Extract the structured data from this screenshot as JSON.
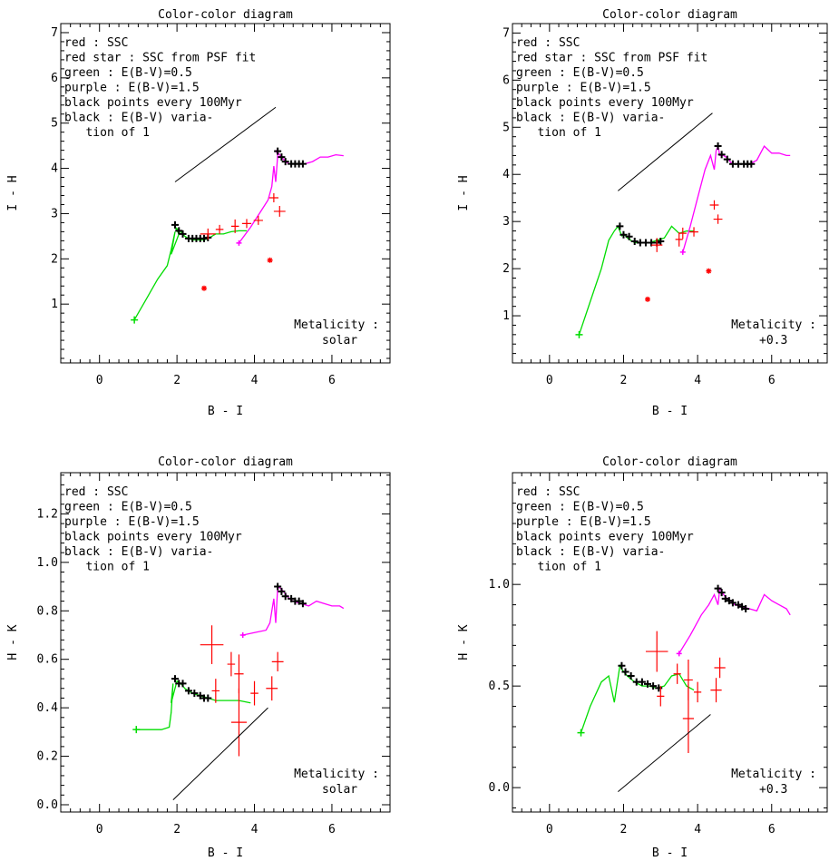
{
  "chart_data": [
    {
      "type": "scatter",
      "title": "Color-color diagram",
      "xlabel": "B - I",
      "ylabel": "I - H",
      "xlim": [
        -1.0,
        7.5
      ],
      "ylim": [
        -0.3,
        7.2
      ],
      "xticks": [
        0,
        2,
        4,
        6
      ],
      "yticks": [
        1,
        2,
        3,
        4,
        5,
        6,
        7
      ],
      "legend": [
        "red : SSC",
        "red star : SSC from PSF fit",
        "green : E(B-V)=0.5",
        "purple : E(B-V)=1.5",
        "black points every 100Myr",
        "black : E(B-V) varia-",
        "   tion of 1"
      ],
      "annotation": [
        "Metalicity :",
        "solar"
      ],
      "colors": {
        "ssc": "#ff0000",
        "green": "#00dd00",
        "purple": "#ff00ff",
        "black": "#000000"
      },
      "series": [
        {
          "name": "green",
          "color": "#00dd00",
          "x": [
            0.9,
            1.2,
            1.5,
            1.75,
            1.85,
            1.95,
            1.85,
            2.05,
            1.95,
            2.1,
            2.2,
            2.3,
            2.4,
            2.5,
            2.6,
            2.7,
            2.8,
            2.9,
            3.0,
            3.2,
            3.4,
            3.6,
            3.8
          ],
          "y": [
            0.65,
            1.1,
            1.55,
            1.85,
            2.2,
            2.6,
            2.1,
            2.55,
            2.7,
            2.6,
            2.5,
            2.45,
            2.42,
            2.42,
            2.42,
            2.42,
            2.45,
            2.5,
            2.55,
            2.55,
            2.6,
            2.62,
            2.62
          ]
        },
        {
          "name": "purple",
          "color": "#ff00ff",
          "x": [
            3.6,
            3.9,
            4.2,
            4.35,
            4.45,
            4.5,
            4.55,
            4.6,
            4.55,
            4.7,
            4.8,
            4.9,
            5.0,
            5.1,
            5.2,
            5.3,
            5.5,
            5.7,
            5.9,
            6.1,
            6.3
          ],
          "y": [
            2.35,
            2.7,
            3.1,
            3.3,
            3.6,
            4.05,
            3.7,
            4.3,
            4.4,
            4.25,
            4.15,
            4.1,
            4.1,
            4.1,
            4.1,
            4.1,
            4.15,
            4.25,
            4.25,
            4.3,
            4.28
          ]
        },
        {
          "name": "black points every 100Myr",
          "color": "#000000",
          "marker": "plus",
          "x": [
            1.95,
            2.05,
            2.15,
            2.3,
            2.4,
            2.5,
            2.6,
            2.7,
            2.8,
            4.6,
            4.7,
            4.8,
            4.95,
            5.05,
            5.15,
            5.25
          ],
          "y": [
            2.75,
            2.62,
            2.55,
            2.45,
            2.45,
            2.45,
            2.45,
            2.45,
            2.47,
            4.38,
            4.25,
            4.15,
            4.1,
            4.1,
            4.1,
            4.1
          ]
        },
        {
          "name": "red : SSC",
          "color": "#ff0000",
          "marker": "cross",
          "x": [
            2.8,
            3.1,
            3.5,
            3.8,
            4.1,
            4.5,
            4.65
          ],
          "y": [
            2.55,
            2.65,
            2.72,
            2.78,
            2.85,
            3.35,
            3.05
          ],
          "xerr": [
            0.2,
            0.1,
            0.1,
            0.12,
            0.12,
            0.12,
            0.15
          ],
          "yerr": [
            0.12,
            0.1,
            0.15,
            0.1,
            0.1,
            0.1,
            0.12
          ]
        },
        {
          "name": "red star : SSC from PSF fit",
          "color": "#ff0000",
          "marker": "star",
          "x": [
            2.7,
            4.4
          ],
          "y": [
            1.35,
            1.97
          ]
        },
        {
          "name": "black : E(B-V) variation of 1",
          "color": "#000000",
          "line": true,
          "x": [
            1.95,
            4.55
          ],
          "y": [
            3.7,
            5.35
          ]
        }
      ]
    },
    {
      "type": "scatter",
      "title": "Color-color diagram",
      "xlabel": "B - I",
      "ylabel": "I - H",
      "xlim": [
        -1.0,
        7.5
      ],
      "ylim": [
        0.0,
        7.2
      ],
      "xticks": [
        0,
        2,
        4,
        6
      ],
      "yticks": [
        1,
        2,
        3,
        4,
        5,
        6,
        7
      ],
      "legend": [
        "red : SSC",
        "red star : SSC from PSF fit",
        "green : E(B-V)=0.5",
        "purple : E(B-V)=1.5",
        "black points every 100Myr",
        "black : E(B-V) varia-",
        "   tion of 1"
      ],
      "annotation": [
        "Metalicity :",
        "+0.3"
      ],
      "colors": {
        "ssc": "#ff0000",
        "green": "#00dd00",
        "purple": "#ff00ff",
        "black": "#000000"
      },
      "series": [
        {
          "name": "green",
          "color": "#00dd00",
          "x": [
            0.8,
            1.1,
            1.4,
            1.6,
            1.75,
            1.85,
            1.95,
            2.0,
            2.1,
            2.2,
            2.3,
            2.5,
            2.7,
            2.9,
            3.1,
            3.3,
            3.5,
            3.7,
            3.9
          ],
          "y": [
            0.6,
            1.3,
            2.0,
            2.6,
            2.8,
            2.9,
            2.7,
            2.75,
            2.65,
            2.6,
            2.55,
            2.55,
            2.55,
            2.6,
            2.65,
            2.9,
            2.75,
            2.8,
            2.8
          ]
        },
        {
          "name": "purple",
          "color": "#ff00ff",
          "x": [
            3.6,
            3.8,
            4.0,
            4.2,
            4.35,
            4.45,
            4.5,
            4.55,
            4.6,
            4.7,
            4.8,
            4.9,
            5.0,
            5.2,
            5.4,
            5.6,
            5.8,
            6.0,
            6.2,
            6.4,
            6.5
          ],
          "y": [
            2.35,
            2.9,
            3.5,
            4.1,
            4.4,
            4.1,
            4.5,
            4.6,
            4.4,
            4.4,
            4.35,
            4.25,
            4.22,
            4.22,
            4.22,
            4.3,
            4.6,
            4.45,
            4.45,
            4.4,
            4.4
          ]
        },
        {
          "name": "black points every 100Myr",
          "color": "#000000",
          "marker": "plus",
          "x": [
            1.9,
            2.0,
            2.15,
            2.3,
            2.45,
            2.6,
            2.75,
            2.9,
            3.0,
            4.55,
            4.65,
            4.8,
            4.95,
            5.1,
            5.25,
            5.35,
            5.45
          ],
          "y": [
            2.9,
            2.72,
            2.68,
            2.58,
            2.55,
            2.55,
            2.55,
            2.55,
            2.58,
            4.6,
            4.42,
            4.32,
            4.22,
            4.22,
            4.22,
            4.22,
            4.22
          ]
        },
        {
          "name": "red : SSC",
          "color": "#ff0000",
          "marker": "cross",
          "x": [
            2.9,
            3.5,
            3.6,
            3.9,
            4.45,
            4.55
          ],
          "y": [
            2.5,
            2.62,
            2.75,
            2.78,
            3.35,
            3.05
          ],
          "xerr": [
            0.15,
            0.1,
            0.1,
            0.12,
            0.12,
            0.12
          ],
          "yerr": [
            0.15,
            0.15,
            0.12,
            0.1,
            0.1,
            0.1
          ]
        },
        {
          "name": "red star : SSC from PSF fit",
          "color": "#ff0000",
          "marker": "star",
          "x": [
            2.65,
            4.3
          ],
          "y": [
            1.35,
            1.95
          ]
        },
        {
          "name": "black : E(B-V) variation of 1",
          "color": "#000000",
          "line": true,
          "x": [
            1.85,
            4.4
          ],
          "y": [
            3.65,
            5.3
          ]
        }
      ]
    },
    {
      "type": "scatter",
      "title": "Color-color diagram",
      "xlabel": "B - I",
      "ylabel": "H - K",
      "xlim": [
        -1.0,
        7.5
      ],
      "ylim": [
        -0.03,
        1.37
      ],
      "xticks": [
        0,
        2,
        4,
        6
      ],
      "yticks": [
        0.0,
        0.2,
        0.4,
        0.6,
        0.8,
        1.0,
        1.2
      ],
      "legend": [
        "red : SSC",
        "green : E(B-V)=0.5",
        "purple : E(B-V)=1.5",
        "black points every 100Myr",
        "black : E(B-V) varia-",
        "   tion of 1"
      ],
      "annotation": [
        "Metalicity :",
        "solar"
      ],
      "colors": {
        "ssc": "#ff0000",
        "green": "#00dd00",
        "purple": "#ff00ff",
        "black": "#000000"
      },
      "series": [
        {
          "name": "green",
          "color": "#00dd00",
          "x": [
            0.95,
            1.3,
            1.6,
            1.8,
            1.85,
            1.9,
            1.85,
            2.0,
            2.1,
            2.2,
            2.4,
            2.6,
            2.8,
            3.0,
            3.3,
            3.6,
            3.9
          ],
          "y": [
            0.31,
            0.31,
            0.31,
            0.32,
            0.38,
            0.5,
            0.42,
            0.51,
            0.5,
            0.48,
            0.46,
            0.45,
            0.44,
            0.43,
            0.43,
            0.43,
            0.42
          ]
        },
        {
          "name": "purple",
          "color": "#ff00ff",
          "x": [
            3.7,
            4.0,
            4.3,
            4.4,
            4.45,
            4.5,
            4.55,
            4.6,
            4.7,
            4.8,
            4.9,
            5.0,
            5.2,
            5.4,
            5.6,
            5.8,
            6.0,
            6.2,
            6.3
          ],
          "y": [
            0.7,
            0.71,
            0.72,
            0.75,
            0.8,
            0.85,
            0.75,
            0.9,
            0.89,
            0.87,
            0.85,
            0.84,
            0.83,
            0.82,
            0.84,
            0.83,
            0.82,
            0.82,
            0.81
          ]
        },
        {
          "name": "black points every 100Myr",
          "color": "#000000",
          "marker": "plus",
          "x": [
            1.95,
            2.05,
            2.15,
            2.3,
            2.45,
            2.6,
            2.7,
            2.8,
            4.6,
            4.7,
            4.8,
            4.95,
            5.05,
            5.15,
            5.25
          ],
          "y": [
            0.52,
            0.5,
            0.5,
            0.47,
            0.46,
            0.45,
            0.44,
            0.44,
            0.9,
            0.88,
            0.86,
            0.85,
            0.84,
            0.84,
            0.83
          ]
        },
        {
          "name": "red : SSC",
          "color": "#ff0000",
          "marker": "cross",
          "x": [
            2.9,
            3.0,
            3.4,
            3.6,
            3.6,
            4.0,
            4.45,
            4.6
          ],
          "y": [
            0.66,
            0.47,
            0.58,
            0.54,
            0.34,
            0.46,
            0.48,
            0.59
          ],
          "xerr": [
            0.3,
            0.1,
            0.1,
            0.12,
            0.2,
            0.1,
            0.15,
            0.15
          ],
          "yerr": [
            0.08,
            0.05,
            0.05,
            0.08,
            0.14,
            0.05,
            0.05,
            0.04
          ]
        },
        {
          "name": "black : E(B-V) variation of 1",
          "color": "#000000",
          "line": true,
          "x": [
            1.9,
            4.35
          ],
          "y": [
            0.02,
            0.4
          ]
        }
      ]
    },
    {
      "type": "scatter",
      "title": "Color-color diagram",
      "xlabel": "B - I",
      "ylabel": "H - K",
      "xlim": [
        -1.0,
        7.5
      ],
      "ylim": [
        -0.12,
        1.55
      ],
      "xticks": [
        0,
        2,
        4,
        6
      ],
      "yticks": [
        0.0,
        0.5,
        1.0
      ],
      "legend": [
        "red : SSC",
        "green : E(B-V)=0.5",
        "purple : E(B-V)=1.5",
        "black points every 100Myr",
        "black : E(B-V) varia-",
        "   tion of 1"
      ],
      "annotation": [
        "Metalicity :",
        "+0.3"
      ],
      "colors": {
        "ssc": "#ff0000",
        "green": "#00dd00",
        "purple": "#ff00ff",
        "black": "#000000"
      },
      "series": [
        {
          "name": "green",
          "color": "#00dd00",
          "x": [
            0.85,
            1.1,
            1.4,
            1.6,
            1.75,
            1.9,
            2.0,
            2.1,
            2.3,
            2.5,
            2.7,
            2.9,
            3.1,
            3.3,
            3.5,
            3.7,
            3.9
          ],
          "y": [
            0.27,
            0.4,
            0.52,
            0.55,
            0.42,
            0.6,
            0.57,
            0.55,
            0.52,
            0.5,
            0.5,
            0.49,
            0.5,
            0.55,
            0.56,
            0.5,
            0.48
          ]
        },
        {
          "name": "purple",
          "color": "#ff00ff",
          "x": [
            3.5,
            3.8,
            4.1,
            4.3,
            4.45,
            4.55,
            4.6,
            4.7,
            4.8,
            4.9,
            5.0,
            5.2,
            5.4,
            5.6,
            5.8,
            6.0,
            6.2,
            6.4,
            6.5
          ],
          "y": [
            0.66,
            0.75,
            0.85,
            0.9,
            0.95,
            0.9,
            0.98,
            0.95,
            0.93,
            0.92,
            0.9,
            0.89,
            0.88,
            0.87,
            0.95,
            0.92,
            0.9,
            0.88,
            0.85
          ]
        },
        {
          "name": "black points every 100Myr",
          "color": "#000000",
          "marker": "plus",
          "x": [
            1.95,
            2.05,
            2.2,
            2.35,
            2.5,
            2.65,
            2.8,
            2.95,
            4.55,
            4.65,
            4.75,
            4.85,
            4.95,
            5.1,
            5.2,
            5.3
          ],
          "y": [
            0.6,
            0.57,
            0.55,
            0.52,
            0.52,
            0.51,
            0.5,
            0.49,
            0.98,
            0.96,
            0.93,
            0.92,
            0.91,
            0.9,
            0.89,
            0.88
          ]
        },
        {
          "name": "red : SSC",
          "color": "#ff0000",
          "marker": "cross",
          "x": [
            2.9,
            3.0,
            3.45,
            3.75,
            3.75,
            4.0,
            4.5,
            4.6
          ],
          "y": [
            0.67,
            0.45,
            0.56,
            0.53,
            0.34,
            0.47,
            0.48,
            0.59
          ],
          "xerr": [
            0.3,
            0.1,
            0.1,
            0.12,
            0.15,
            0.1,
            0.15,
            0.15
          ],
          "yerr": [
            0.1,
            0.05,
            0.05,
            0.1,
            0.17,
            0.05,
            0.06,
            0.05
          ]
        },
        {
          "name": "black : E(B-V) variation of 1",
          "color": "#000000",
          "line": true,
          "x": [
            1.85,
            4.35
          ],
          "y": [
            -0.02,
            0.36
          ]
        }
      ]
    }
  ]
}
